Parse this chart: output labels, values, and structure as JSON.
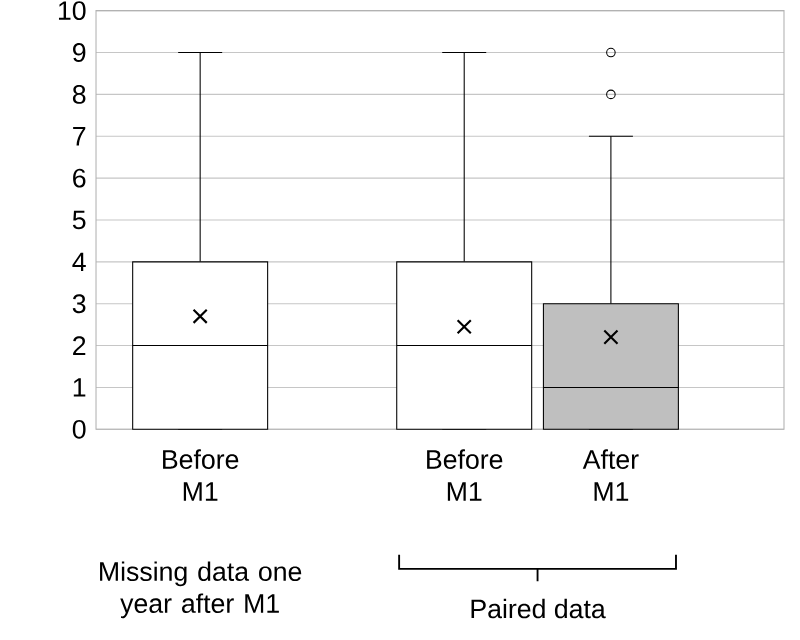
{
  "chart_data": {
    "type": "box",
    "categories": [
      "Before M1",
      "Before M1",
      "After M1"
    ],
    "boxes": [
      {
        "low": 0,
        "q1": 0,
        "median": 2,
        "q3": 4,
        "high": 9,
        "mean": 2.7
      },
      {
        "low": 0,
        "q1": 0,
        "median": 2,
        "q3": 4,
        "high": 9,
        "mean": 2.45
      },
      {
        "low": 0,
        "q1": 0,
        "median": 1,
        "q3": 3,
        "high": 7,
        "mean": 2.2,
        "outliers": [
          8,
          9
        ]
      }
    ],
    "colors": [
      "#ffffff",
      "#ffffff",
      "#bfbfbf"
    ],
    "ylim": [
      0,
      10
    ],
    "yticks": [
      0,
      1,
      2,
      3,
      4,
      5,
      6,
      7,
      8,
      9,
      10
    ],
    "grid": "y",
    "annotations": [
      "Missing data one year after M1",
      "Paired data"
    ]
  }
}
